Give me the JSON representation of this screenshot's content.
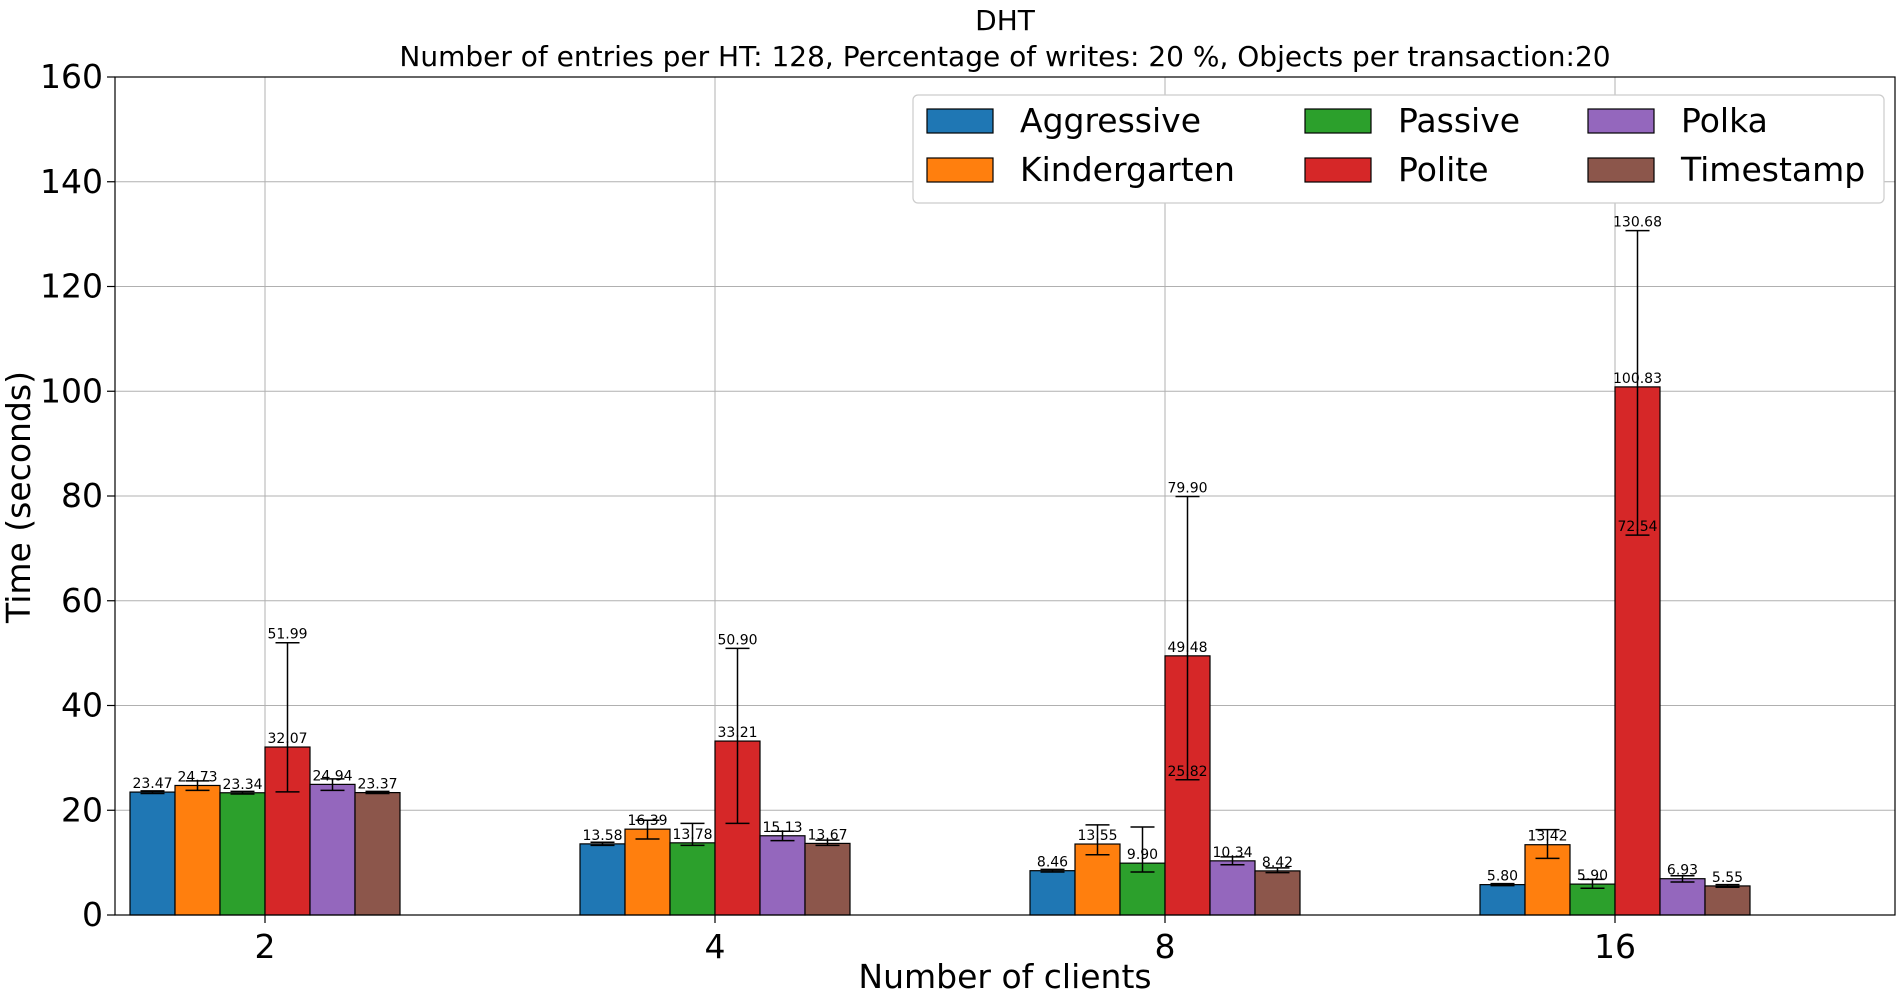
{
  "chart_data": {
    "type": "bar",
    "title": "DHT",
    "subtitle": "Number of entries per HT: 128, Percentage of writes: 20 %, Objects per transaction:20",
    "xlabel": "Number of clients",
    "ylabel": "Time (seconds)",
    "categories": [
      "2",
      "4",
      "8",
      "16"
    ],
    "ylim": [
      0,
      160
    ],
    "yticks": [
      0,
      20,
      40,
      60,
      80,
      100,
      120,
      140,
      160
    ],
    "grid": true,
    "legend_position": "top-right",
    "legend_columns": 3,
    "series": [
      {
        "name": "Aggressive",
        "color": "#1f77b4",
        "values": [
          23.47,
          13.58,
          8.46,
          5.8
        ],
        "err_low": [
          23.2,
          13.3,
          8.2,
          5.6
        ],
        "err_high": [
          23.7,
          13.9,
          8.7,
          6.0
        ],
        "labels": [
          "23.47",
          "13.58",
          "8.46",
          "5.80"
        ]
      },
      {
        "name": "Kindergarten",
        "color": "#ff7f0e",
        "values": [
          24.73,
          16.39,
          13.55,
          13.42
        ],
        "err_low": [
          23.8,
          14.5,
          11.5,
          10.8
        ],
        "err_high": [
          25.6,
          18.1,
          17.2,
          16.3
        ],
        "labels": [
          "24.73",
          "16.39",
          "13.55",
          "13.42"
        ]
      },
      {
        "name": "Passive",
        "color": "#2ca02c",
        "values": [
          23.34,
          13.78,
          9.9,
          5.9
        ],
        "err_low": [
          23.1,
          13.3,
          8.2,
          5.1
        ],
        "err_high": [
          23.6,
          17.5,
          16.8,
          6.8
        ],
        "labels": [
          "23.34",
          "13.78",
          "9.90",
          "5.90"
        ]
      },
      {
        "name": "Polite",
        "color": "#d62728",
        "values": [
          32.07,
          33.21,
          49.48,
          100.83
        ],
        "err_low": [
          23.5,
          17.5,
          25.82,
          72.54
        ],
        "err_high": [
          51.99,
          50.9,
          79.9,
          130.68
        ],
        "labels": [
          "32.07",
          "33.21",
          "49.48",
          "100.83"
        ],
        "low_labels": [
          "",
          "",
          "25.82",
          "72.54"
        ],
        "high_labels": [
          "51.99",
          "50.90",
          "79.90",
          "130.68"
        ]
      },
      {
        "name": "Polka",
        "color": "#9467bd",
        "values": [
          24.94,
          15.13,
          10.34,
          6.93
        ],
        "err_low": [
          23.8,
          14.2,
          9.6,
          6.3
        ],
        "err_high": [
          26.0,
          16.0,
          11.1,
          7.5
        ],
        "labels": [
          "24.94",
          "15.13",
          "10.34",
          "6.93"
        ]
      },
      {
        "name": "Timestamp",
        "color": "#8c564b",
        "values": [
          23.37,
          13.67,
          8.42,
          5.55
        ],
        "err_low": [
          23.2,
          13.3,
          8.1,
          5.3
        ],
        "err_high": [
          23.6,
          14.3,
          9.0,
          5.8
        ],
        "labels": [
          "23.37",
          "13.67",
          "8.42",
          "5.55"
        ]
      }
    ]
  }
}
